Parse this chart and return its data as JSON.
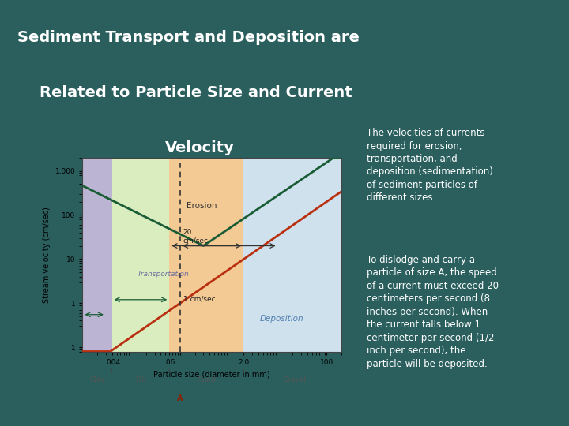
{
  "bg_color": "#2a5f5e",
  "title_line1": "Sediment Transport and Deposition are",
  "title_line2": "Related to Particle Size and Current",
  "title_line3": "Velocity",
  "title_color": "#ffffff",
  "chart_outer_bg": "#f5f0a0",
  "chart_inner_bg": "#fffde8",
  "red_rect_color": "#8b0000",
  "zone_clay_color": "#b0a8d0",
  "zone_silt_color": "#cde8b0",
  "zone_sand_color": "#f0b878",
  "zone_gravel_color": "#c0d8f0",
  "erosion_line_color": "#1a5c35",
  "deposition_line_color": "#b83010",
  "right_text1": "The velocities of currents\nrequired for erosion,\ntransportation, and\ndeposition (sedimentation)\nof sediment particles of\ndifferent sizes.",
  "right_text2": "To dislodge and carry a\nparticle of size A, the speed\nof a current must exceed 20\ncentimeters per second (8\ninches per second). When\nthe current falls below 1\ncentimeter per second (1/2\ninch per second), the\nparticle will be deposited.",
  "right_text_color": "#ffffff",
  "x_label": "Particle size (diameter in mm)",
  "y_label": "Stream velocity (cm/sec)"
}
